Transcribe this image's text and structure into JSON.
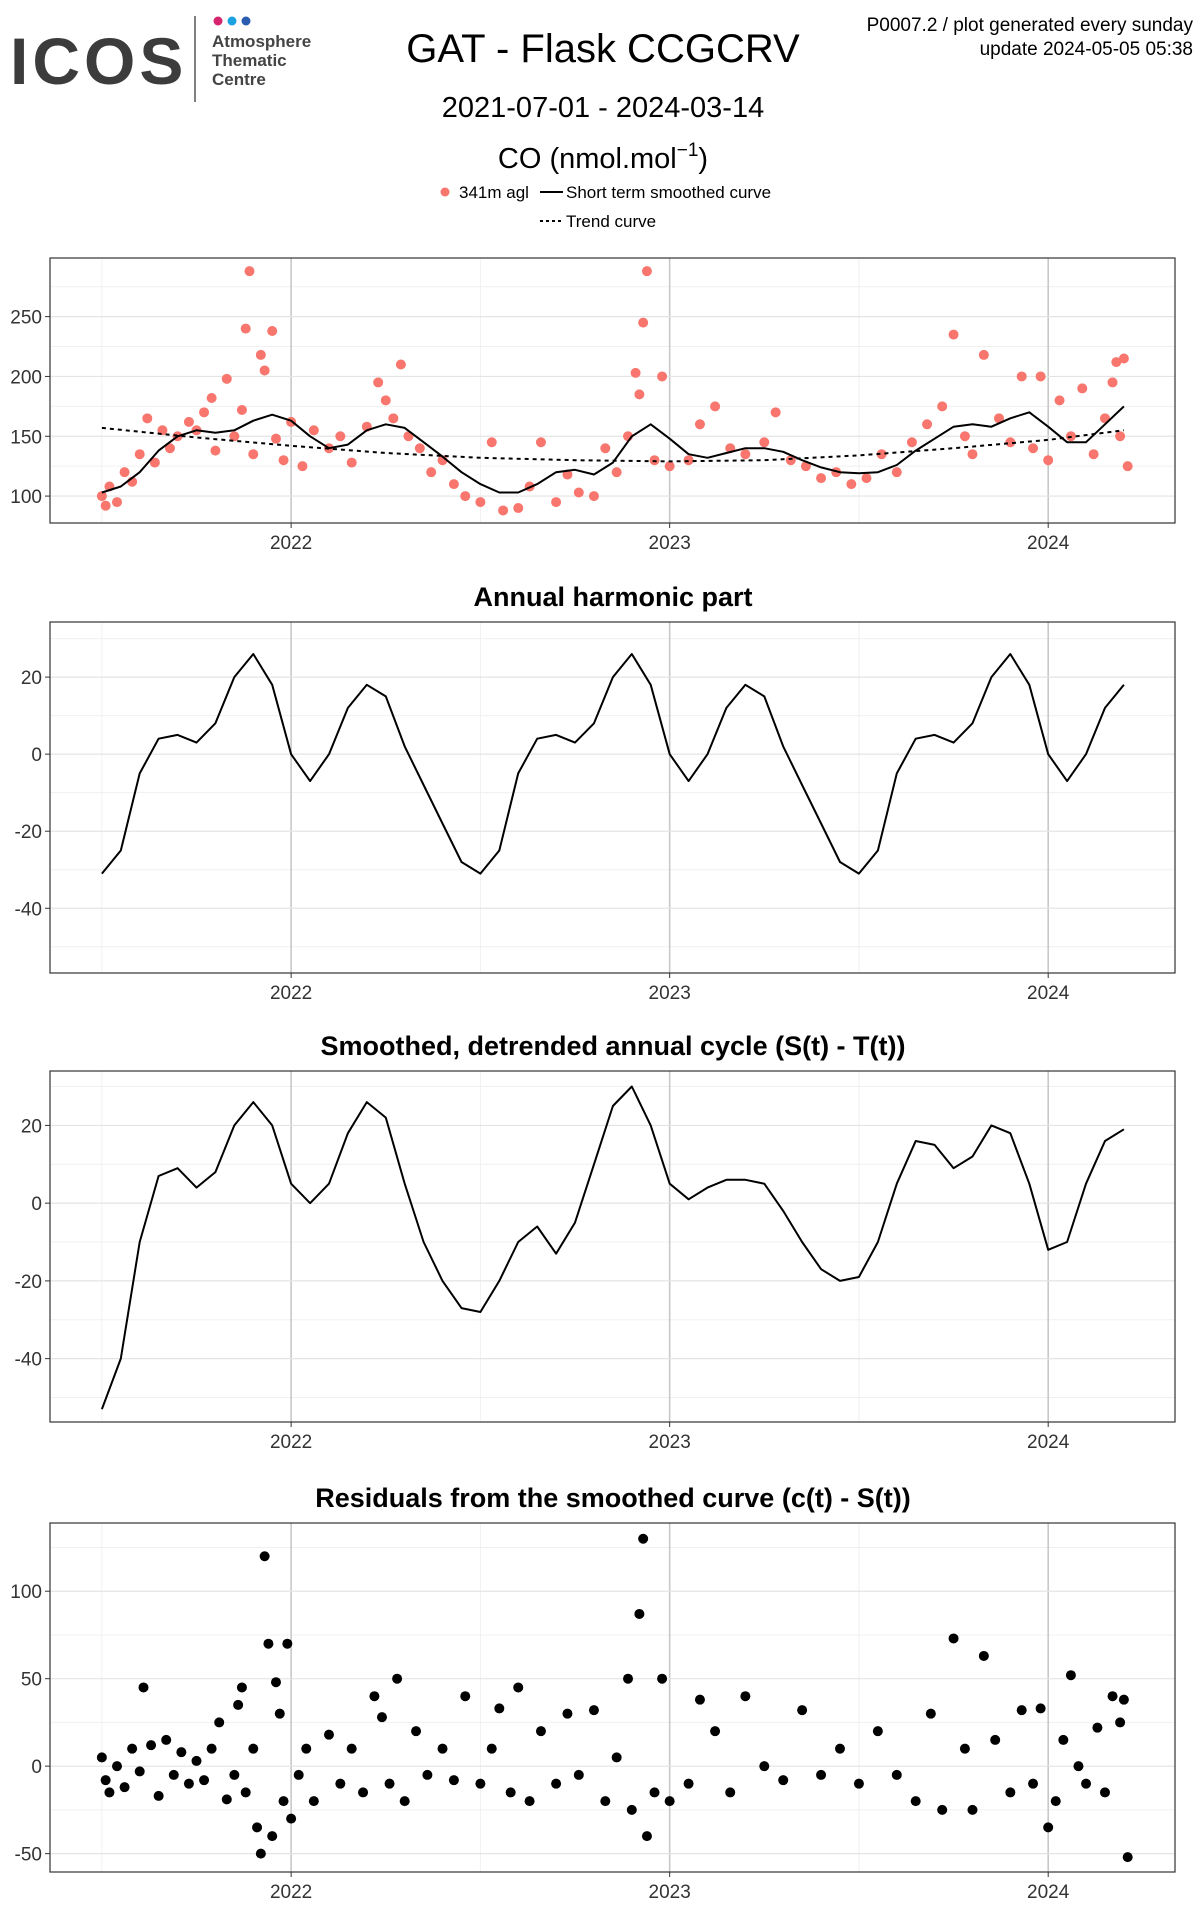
{
  "header": {
    "logo": "ICOS",
    "org": [
      "Atmosphere",
      "Thematic",
      "Centre"
    ],
    "info": [
      "P0007.2 / plot generated every sunday",
      "update  2024-05-05 05:38"
    ]
  },
  "chart_data": [
    {
      "type": "scatter",
      "title": "GAT - Flask CCGCRV",
      "subtitle": "2021-07-01 - 2024-03-14",
      "ylabel": "CO (nmol.mol",
      "ylabel_exponent": "−1",
      "ylabel_suffix": ")",
      "xlim": [
        2021.363,
        2024.335
      ],
      "xticks": [
        2022,
        2023,
        2024
      ],
      "minor_xticks": [
        2021.5,
        2022.5,
        2023.5
      ],
      "ylim": [
        77.5,
        299
      ],
      "yticks": [
        100,
        150,
        200,
        250
      ],
      "minor_yticks": [
        125,
        175,
        225,
        275
      ],
      "grid": true,
      "series": [
        {
          "name": "341m agl",
          "mode": "markers",
          "color": "#F8766D",
          "x": [
            2021.5,
            2021.51,
            2021.52,
            2021.54,
            2021.56,
            2021.58,
            2021.6,
            2021.62,
            2021.64,
            2021.66,
            2021.68,
            2021.7,
            2021.73,
            2021.75,
            2021.77,
            2021.79,
            2021.8,
            2021.83,
            2021.85,
            2021.87,
            2021.88,
            2021.89,
            2021.9,
            2021.92,
            2021.93,
            2021.95,
            2021.96,
            2021.98,
            2022.0,
            2022.03,
            2022.06,
            2022.1,
            2022.13,
            2022.16,
            2022.2,
            2022.23,
            2022.25,
            2022.27,
            2022.29,
            2022.31,
            2022.34,
            2022.37,
            2022.4,
            2022.43,
            2022.46,
            2022.5,
            2022.53,
            2022.56,
            2022.6,
            2022.63,
            2022.66,
            2022.7,
            2022.73,
            2022.76,
            2022.8,
            2022.83,
            2022.86,
            2022.89,
            2022.91,
            2022.92,
            2022.93,
            2022.94,
            2022.96,
            2022.98,
            2023.0,
            2023.05,
            2023.08,
            2023.12,
            2023.16,
            2023.2,
            2023.25,
            2023.28,
            2023.32,
            2023.36,
            2023.4,
            2023.44,
            2023.48,
            2023.52,
            2023.56,
            2023.6,
            2023.64,
            2023.68,
            2023.72,
            2023.75,
            2023.78,
            2023.8,
            2023.83,
            2023.87,
            2023.9,
            2023.93,
            2023.96,
            2023.98,
            2024.0,
            2024.03,
            2024.06,
            2024.09,
            2024.12,
            2024.15,
            2024.17,
            2024.18,
            2024.19,
            2024.2,
            2024.21
          ],
          "values": [
            100,
            92,
            108,
            95,
            120,
            112,
            135,
            165,
            128,
            155,
            140,
            150,
            162,
            155,
            170,
            182,
            138,
            198,
            150,
            172,
            240,
            288,
            135,
            218,
            205,
            238,
            148,
            130,
            162,
            125,
            155,
            140,
            150,
            128,
            158,
            195,
            180,
            165,
            210,
            150,
            140,
            120,
            130,
            110,
            100,
            95,
            145,
            88,
            90,
            108,
            145,
            95,
            118,
            103,
            100,
            140,
            120,
            150,
            203,
            185,
            245,
            288,
            130,
            200,
            125,
            130,
            160,
            175,
            140,
            135,
            145,
            170,
            130,
            125,
            115,
            120,
            110,
            115,
            135,
            120,
            145,
            160,
            175,
            235,
            150,
            135,
            218,
            165,
            145,
            200,
            140,
            200,
            130,
            180,
            150,
            190,
            135,
            165,
            195,
            212,
            150,
            215,
            125
          ]
        },
        {
          "name": "Short term smoothed curve",
          "mode": "line",
          "color": "#000000",
          "x": [
            2021.5,
            2021.55,
            2021.6,
            2021.65,
            2021.7,
            2021.75,
            2021.8,
            2021.85,
            2021.9,
            2021.95,
            2022.0,
            2022.05,
            2022.1,
            2022.15,
            2022.2,
            2022.25,
            2022.3,
            2022.35,
            2022.4,
            2022.45,
            2022.5,
            2022.55,
            2022.6,
            2022.65,
            2022.7,
            2022.75,
            2022.8,
            2022.85,
            2022.9,
            2022.95,
            2023.0,
            2023.05,
            2023.1,
            2023.15,
            2023.2,
            2023.25,
            2023.3,
            2023.35,
            2023.4,
            2023.45,
            2023.5,
            2023.55,
            2023.6,
            2023.65,
            2023.7,
            2023.75,
            2023.8,
            2023.85,
            2023.9,
            2023.95,
            2024.0,
            2024.05,
            2024.1,
            2024.15,
            2024.2
          ],
          "values": [
            103,
            108,
            120,
            138,
            150,
            155,
            153,
            155,
            163,
            168,
            163,
            150,
            140,
            143,
            155,
            160,
            157,
            145,
            133,
            120,
            110,
            103,
            103,
            110,
            120,
            122,
            118,
            128,
            150,
            160,
            148,
            135,
            132,
            136,
            140,
            140,
            137,
            130,
            124,
            120,
            119,
            120,
            126,
            138,
            148,
            158,
            160,
            158,
            165,
            170,
            158,
            145,
            145,
            160,
            175
          ]
        },
        {
          "name": "Trend curve",
          "mode": "line",
          "dash": true,
          "color": "#000000",
          "x": [
            2021.5,
            2021.75,
            2022,
            2022.25,
            2022.5,
            2022.75,
            2023,
            2023.25,
            2023.5,
            2023.75,
            2024,
            2024.2
          ],
          "values": [
            157,
            149,
            142,
            136,
            132,
            130,
            129,
            130,
            134,
            140,
            147,
            155
          ]
        }
      ]
    },
    {
      "type": "line",
      "title": "Annual harmonic part",
      "xlim": [
        2021.363,
        2024.335
      ],
      "xticks": [
        2022,
        2023,
        2024
      ],
      "minor_xticks": [
        2021.5,
        2022.5,
        2023.5
      ],
      "ylim": [
        -56.8,
        34.3
      ],
      "yticks": [
        -40,
        -20,
        0,
        20
      ],
      "minor_yticks": [
        -50,
        -30,
        -10,
        10,
        30
      ],
      "grid": true,
      "series": [
        {
          "mode": "line",
          "color": "#000000",
          "x": [
            2021.5,
            2021.55,
            2021.6,
            2021.65,
            2021.7,
            2021.75,
            2021.8,
            2021.85,
            2021.9,
            2021.95,
            2022.0,
            2022.05,
            2022.1,
            2022.15,
            2022.2,
            2022.25,
            2022.3,
            2022.35,
            2022.4,
            2022.45,
            2022.5,
            2022.55,
            2022.6,
            2022.65,
            2022.7,
            2022.75,
            2022.8,
            2022.85,
            2022.9,
            2022.95,
            2023.0,
            2023.05,
            2023.1,
            2023.15,
            2023.2,
            2023.25,
            2023.3,
            2023.35,
            2023.4,
            2023.45,
            2023.5,
            2023.55,
            2023.6,
            2023.65,
            2023.7,
            2023.75,
            2023.8,
            2023.85,
            2023.9,
            2023.95,
            2024.0,
            2024.05,
            2024.1,
            2024.15,
            2024.2
          ],
          "values": [
            -31,
            -25,
            -5,
            4,
            5,
            3,
            8,
            20,
            26,
            18,
            0,
            -7,
            0,
            12,
            18,
            15,
            2,
            -8,
            -18,
            -28,
            -31,
            -25,
            -5,
            4,
            5,
            3,
            8,
            20,
            26,
            18,
            0,
            -7,
            0,
            12,
            18,
            15,
            2,
            -8,
            -18,
            -28,
            -31,
            -25,
            -5,
            4,
            5,
            3,
            8,
            20,
            26,
            18,
            0,
            -7,
            0,
            12,
            18
          ]
        }
      ]
    },
    {
      "type": "line",
      "title": "Smoothed, detrended annual cycle (S(t) - T(t))",
      "xlim": [
        2021.363,
        2024.335
      ],
      "xticks": [
        2022,
        2023,
        2024
      ],
      "minor_xticks": [
        2021.5,
        2022.5,
        2023.5
      ],
      "ylim": [
        -56.3,
        34
      ],
      "yticks": [
        -40,
        -20,
        0,
        20
      ],
      "minor_yticks": [
        -50,
        -30,
        -10,
        10,
        30
      ],
      "grid": true,
      "series": [
        {
          "mode": "line",
          "color": "#000000",
          "x": [
            2021.5,
            2021.55,
            2021.6,
            2021.65,
            2021.7,
            2021.75,
            2021.8,
            2021.85,
            2021.9,
            2021.95,
            2022.0,
            2022.05,
            2022.1,
            2022.15,
            2022.2,
            2022.25,
            2022.3,
            2022.35,
            2022.4,
            2022.45,
            2022.5,
            2022.55,
            2022.6,
            2022.65,
            2022.7,
            2022.75,
            2022.8,
            2022.85,
            2022.9,
            2022.95,
            2023.0,
            2023.05,
            2023.1,
            2023.15,
            2023.2,
            2023.25,
            2023.3,
            2023.35,
            2023.4,
            2023.45,
            2023.5,
            2023.55,
            2023.6,
            2023.65,
            2023.7,
            2023.75,
            2023.8,
            2023.85,
            2023.9,
            2023.95,
            2024.0,
            2024.05,
            2024.1,
            2024.15,
            2024.2
          ],
          "values": [
            -53,
            -40,
            -10,
            7,
            9,
            4,
            8,
            20,
            26,
            20,
            5,
            0,
            5,
            18,
            26,
            22,
            5,
            -10,
            -20,
            -27,
            -28,
            -20,
            -10,
            -6,
            -13,
            -5,
            10,
            25,
            30,
            20,
            5,
            1,
            4,
            6,
            6,
            5,
            -2,
            -10,
            -17,
            -20,
            -19,
            -10,
            5,
            16,
            15,
            9,
            12,
            20,
            18,
            5,
            -12,
            -10,
            5,
            16,
            19
          ]
        }
      ]
    },
    {
      "type": "scatter",
      "title": "Residuals from the smoothed curve (c(t) - S(t))",
      "xlim": [
        2021.363,
        2024.335
      ],
      "xticks": [
        2022,
        2023,
        2024
      ],
      "minor_xticks": [
        2021.5,
        2022.5,
        2023.5
      ],
      "ylim": [
        -60.5,
        139
      ],
      "yticks": [
        -50,
        0,
        50,
        100
      ],
      "minor_yticks": [
        -25,
        25,
        75,
        125
      ],
      "grid": true,
      "series": [
        {
          "mode": "markers",
          "color": "#000000",
          "x": [
            2021.5,
            2021.51,
            2021.52,
            2021.54,
            2021.56,
            2021.58,
            2021.6,
            2021.61,
            2021.63,
            2021.65,
            2021.67,
            2021.69,
            2021.71,
            2021.73,
            2021.75,
            2021.77,
            2021.79,
            2021.81,
            2021.83,
            2021.85,
            2021.86,
            2021.87,
            2021.88,
            2021.9,
            2021.91,
            2021.92,
            2021.93,
            2021.94,
            2021.95,
            2021.96,
            2021.97,
            2021.98,
            2021.99,
            2022.0,
            2022.02,
            2022.04,
            2022.06,
            2022.1,
            2022.13,
            2022.16,
            2022.19,
            2022.22,
            2022.24,
            2022.26,
            2022.28,
            2022.3,
            2022.33,
            2022.36,
            2022.4,
            2022.43,
            2022.46,
            2022.5,
            2022.53,
            2022.55,
            2022.58,
            2022.6,
            2022.63,
            2022.66,
            2022.7,
            2022.73,
            2022.76,
            2022.8,
            2022.83,
            2022.86,
            2022.89,
            2022.9,
            2022.92,
            2022.93,
            2022.94,
            2022.96,
            2022.98,
            2023.0,
            2023.05,
            2023.08,
            2023.12,
            2023.16,
            2023.2,
            2023.25,
            2023.3,
            2023.35,
            2023.4,
            2023.45,
            2023.5,
            2023.55,
            2023.6,
            2023.65,
            2023.69,
            2023.72,
            2023.75,
            2023.78,
            2023.8,
            2023.83,
            2023.86,
            2023.9,
            2023.93,
            2023.96,
            2023.98,
            2024.0,
            2024.02,
            2024.04,
            2024.06,
            2024.08,
            2024.1,
            2024.13,
            2024.15,
            2024.17,
            2024.19,
            2024.2,
            2024.21
          ],
          "values": [
            5,
            -8,
            -15,
            0,
            -12,
            10,
            -3,
            45,
            12,
            -17,
            15,
            -5,
            8,
            -10,
            3,
            -8,
            10,
            25,
            -19,
            -5,
            35,
            45,
            -15,
            10,
            -35,
            -50,
            120,
            70,
            -40,
            48,
            30,
            -20,
            70,
            -30,
            -5,
            10,
            -20,
            18,
            -10,
            10,
            -15,
            40,
            28,
            -10,
            50,
            -20,
            20,
            -5,
            10,
            -8,
            40,
            -10,
            10,
            33,
            -15,
            45,
            -20,
            20,
            -10,
            30,
            -5,
            32,
            -20,
            5,
            50,
            -25,
            87,
            130,
            -40,
            -15,
            50,
            -20,
            -10,
            38,
            20,
            -15,
            40,
            0,
            -8,
            32,
            -5,
            10,
            -10,
            20,
            -5,
            -20,
            30,
            -25,
            73,
            10,
            -25,
            63,
            15,
            -15,
            32,
            -10,
            33,
            -35,
            -20,
            15,
            52,
            0,
            -10,
            22,
            -15,
            40,
            25,
            38,
            -52
          ]
        }
      ]
    }
  ]
}
